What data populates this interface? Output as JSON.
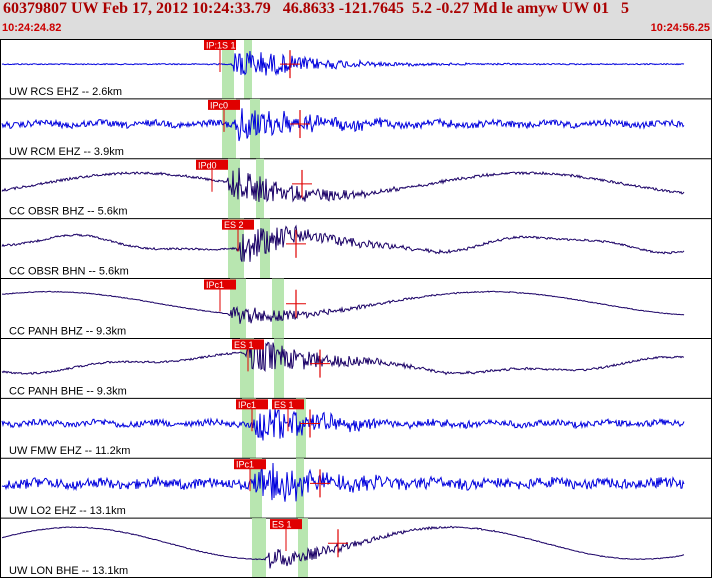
{
  "header": {
    "title": "60379807 UW Feb 17, 2012 10:24:33.79   46.8633 -121.7645  5.2 -0.27 Md le amyw UW 01   5",
    "time_start": "10:24:24.82",
    "time_end": "10:24:56.25"
  },
  "colors": {
    "header_bg": "#dddddd",
    "title": "#aa0000",
    "pick_box": "#e00000",
    "pick_text": "#ffffff",
    "window": "#b8e6b0",
    "trace_blue": "#0000dd",
    "trace_navy": "#1a0066",
    "divider": "#000000",
    "label": "#000000"
  },
  "traces": [
    {
      "label": "UW RCS EHZ -- 2.6km",
      "color": "blue",
      "shape": "flat",
      "picks": [
        "IP"
      ],
      "pick_labels": [
        "IP:1S 1"
      ]
    },
    {
      "label": "UW RCM EHZ -- 3.9km",
      "color": "blue",
      "shape": "noise",
      "picks": [
        "IP"
      ],
      "pick_labels": [
        "IPc0"
      ]
    },
    {
      "label": "CC OBSR BHZ -- 5.6km",
      "color": "navy",
      "shape": "wave",
      "picks": [
        "IP"
      ],
      "pick_labels": [
        "IPd0"
      ]
    },
    {
      "label": "CC OBSR BHN -- 5.6km",
      "color": "navy",
      "shape": "wave2",
      "picks": [
        "ES"
      ],
      "pick_labels": [
        "ES 2"
      ]
    },
    {
      "label": "CC PANH BHZ -- 9.3km",
      "color": "navy",
      "shape": "smooth",
      "picks": [
        "IP"
      ],
      "pick_labels": [
        "IPc1"
      ]
    },
    {
      "label": "CC PANH BHE -- 9.3km",
      "color": "navy",
      "shape": "drift",
      "picks": [
        "ES"
      ],
      "pick_labels": [
        "ES 1"
      ]
    },
    {
      "label": "UW FMW EHZ -- 11.2km",
      "color": "blue",
      "shape": "noise2",
      "picks": [
        "IP",
        "ES"
      ],
      "pick_labels": [
        "IPc1",
        "ES 1"
      ]
    },
    {
      "label": "UW LO2 EHZ -- 13.1km",
      "color": "blue",
      "shape": "noise3",
      "picks": [
        "IP"
      ],
      "pick_labels": [
        "IPc1"
      ]
    },
    {
      "label": "UW LON BHE -- 13.1km",
      "color": "navy",
      "shape": "smooth2",
      "picks": [
        "ES"
      ],
      "pick_labels": [
        "ES 1"
      ]
    }
  ]
}
